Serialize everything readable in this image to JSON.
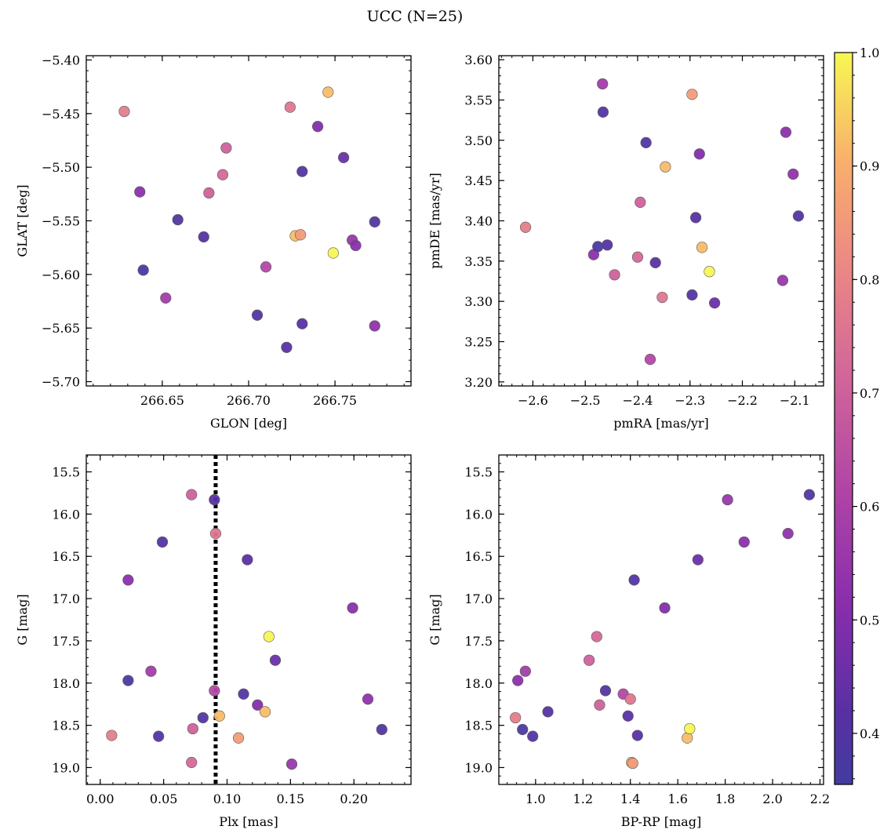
{
  "figure": {
    "title": "UCC (N=25)"
  },
  "colorbar": {
    "range": [
      0.355,
      1.0
    ],
    "ticks": [
      0.4,
      0.5,
      0.6,
      0.7,
      0.8,
      0.9,
      1.0
    ],
    "tick_labels": [
      "0.4",
      "0.5",
      "0.6",
      "0.7",
      "0.8",
      "0.9",
      "1.0"
    ],
    "colormap": "plasma"
  },
  "chart_data": [
    {
      "type": "scatter",
      "xlabel": "GLON [deg]",
      "ylabel": "GLAT [deg]",
      "xlim": [
        266.606,
        266.794
      ],
      "ylim": [
        -5.704,
        -5.396
      ],
      "xticks": [
        266.65,
        266.7,
        266.75
      ],
      "xtick_labels": [
        "266.65",
        "266.70",
        "266.75"
      ],
      "yticks": [
        -5.7,
        -5.65,
        -5.6,
        -5.55,
        -5.5,
        -5.45,
        -5.4
      ],
      "ytick_labels": [
        "−5.70",
        "−5.65",
        "−5.60",
        "−5.55",
        "−5.50",
        "−5.45",
        "−5.40"
      ],
      "x": [
        266.628,
        266.637,
        266.639,
        266.652,
        266.659,
        266.674,
        266.677,
        266.685,
        266.687,
        266.705,
        266.71,
        266.722,
        266.724,
        266.727,
        266.73,
        266.731,
        266.731,
        266.74,
        266.746,
        266.749,
        266.755,
        266.76,
        266.762,
        266.773,
        266.773
      ],
      "y": [
        -5.448,
        -5.523,
        -5.596,
        -5.622,
        -5.549,
        -5.565,
        -5.524,
        -5.507,
        -5.482,
        -5.638,
        -5.593,
        -5.668,
        -5.444,
        -5.564,
        -5.563,
        -5.504,
        -5.646,
        -5.462,
        -5.43,
        -5.58,
        -5.491,
        -5.568,
        -5.573,
        -5.648,
        -5.551
      ],
      "color_values": [
        0.78,
        0.52,
        0.38,
        0.58,
        0.4,
        0.41,
        0.7,
        0.72,
        0.7,
        0.4,
        0.62,
        0.42,
        0.76,
        0.92,
        0.86,
        0.4,
        0.42,
        0.5,
        0.92,
        1.0,
        0.45,
        0.55,
        0.52,
        0.53,
        0.4
      ]
    },
    {
      "type": "scatter",
      "xlabel": "pmRA [mas/yr]",
      "ylabel": "pmDE [mas/yr]",
      "xlim": [
        -2.665,
        -2.045
      ],
      "ylim": [
        3.195,
        3.605
      ],
      "xticks": [
        -2.6,
        -2.5,
        -2.4,
        -2.3,
        -2.2,
        -2.1
      ],
      "xtick_labels": [
        "−2.6",
        "−2.5",
        "−2.4",
        "−2.3",
        "−2.2",
        "−2.1"
      ],
      "yticks": [
        3.2,
        3.25,
        3.3,
        3.35,
        3.4,
        3.45,
        3.5,
        3.55,
        3.6
      ],
      "ytick_labels": [
        "3.20",
        "3.25",
        "3.30",
        "3.35",
        "3.40",
        "3.45",
        "3.50",
        "3.55",
        "3.60"
      ],
      "x": [
        -2.614,
        -2.484,
        -2.476,
        -2.467,
        -2.466,
        -2.458,
        -2.444,
        -2.4,
        -2.395,
        -2.384,
        -2.376,
        -2.366,
        -2.353,
        -2.347,
        -2.296,
        -2.296,
        -2.289,
        -2.282,
        -2.277,
        -2.263,
        -2.253,
        -2.123,
        -2.117,
        -2.103,
        -2.093
      ],
      "y": [
        3.392,
        3.358,
        3.368,
        3.57,
        3.535,
        3.37,
        3.333,
        3.355,
        3.423,
        3.497,
        3.228,
        3.348,
        3.305,
        3.467,
        3.557,
        3.308,
        3.404,
        3.483,
        3.367,
        3.337,
        3.298,
        3.326,
        3.51,
        3.458,
        3.406
      ]
    },
    {
      "type": "scatter",
      "xlabel": "Plx [mas]",
      "ylabel": "G [mag]",
      "xlim": [
        -0.011,
        0.245
      ],
      "ylim": [
        19.2,
        15.3
      ],
      "xticks": [
        0.0,
        0.05,
        0.1,
        0.15,
        0.2
      ],
      "xtick_labels": [
        "0.00",
        "0.05",
        "0.10",
        "0.15",
        "0.20"
      ],
      "yticks": [
        15.5,
        16.0,
        16.5,
        17.0,
        17.5,
        18.0,
        18.5,
        19.0
      ],
      "ytick_labels": [
        "15.5",
        "16.0",
        "16.5",
        "17.0",
        "17.5",
        "18.0",
        "18.5",
        "19.0"
      ],
      "vline_x": 0.091,
      "x": [
        0.009,
        0.022,
        0.022,
        0.04,
        0.046,
        0.049,
        0.072,
        0.072,
        0.073,
        0.081,
        0.09,
        0.09,
        0.091,
        0.094,
        0.109,
        0.113,
        0.116,
        0.124,
        0.13,
        0.133,
        0.138,
        0.151,
        0.199,
        0.211,
        0.222
      ],
      "y": [
        18.62,
        16.78,
        17.97,
        17.86,
        18.63,
        16.33,
        15.77,
        18.94,
        18.54,
        18.41,
        18.09,
        15.83,
        16.23,
        18.39,
        18.65,
        18.13,
        16.54,
        18.26,
        18.34,
        17.45,
        17.73,
        18.96,
        17.11,
        18.19,
        18.55
      ]
    },
    {
      "type": "scatter",
      "xlabel": "BP-RP [mag]",
      "ylabel": "G [mag]",
      "xlim": [
        0.845,
        2.215
      ],
      "ylim": [
        19.2,
        15.3
      ],
      "xticks": [
        1.0,
        1.2,
        1.4,
        1.6,
        1.8,
        2.0,
        2.2
      ],
      "xtick_labels": [
        "1.0",
        "1.2",
        "1.4",
        "1.6",
        "1.8",
        "2.0",
        "2.2"
      ],
      "yticks": [
        15.5,
        16.0,
        16.5,
        17.0,
        17.5,
        18.0,
        18.5,
        19.0
      ],
      "ytick_labels": [
        "15.5",
        "16.0",
        "16.5",
        "17.0",
        "17.5",
        "18.0",
        "18.5",
        "19.0"
      ],
      "x": [
        0.915,
        0.925,
        0.945,
        0.957,
        0.988,
        1.052,
        1.226,
        1.258,
        1.27,
        1.295,
        1.37,
        1.39,
        1.4,
        1.405,
        1.41,
        1.416,
        1.43,
        1.545,
        1.64,
        1.65,
        1.685,
        1.81,
        1.88,
        2.065,
        2.155
      ],
      "y": [
        18.41,
        17.97,
        18.55,
        17.86,
        18.63,
        18.34,
        17.73,
        17.45,
        18.26,
        18.09,
        18.13,
        18.39,
        18.19,
        18.94,
        18.95,
        16.78,
        18.62,
        17.11,
        18.65,
        18.54,
        16.54,
        15.83,
        16.33,
        16.23,
        15.77
      ]
    }
  ]
}
